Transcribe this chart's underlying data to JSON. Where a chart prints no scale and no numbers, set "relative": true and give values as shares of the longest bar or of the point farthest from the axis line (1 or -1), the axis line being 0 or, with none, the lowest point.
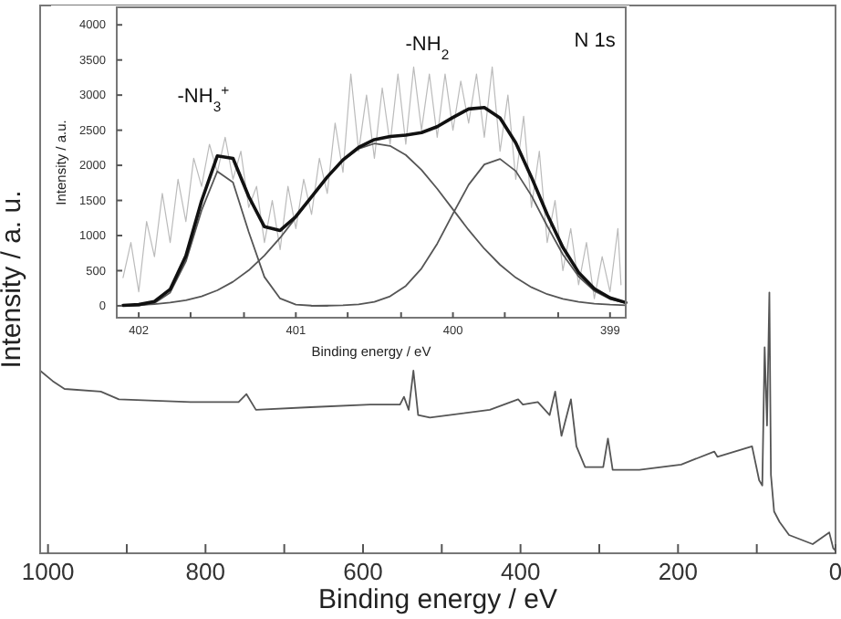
{
  "chart_data": [
    {
      "type": "line",
      "relative": true,
      "xlabel": "Binding energy / eV",
      "ylabel": "Intensity / a. u.",
      "xlim": [
        1010,
        0
      ],
      "xticks": [
        1000,
        {
          "value": 900,
          "label": null
        },
        800,
        {
          "value": 700,
          "label": null
        },
        600,
        {
          "value": 500,
          "label": null
        },
        400,
        {
          "value": 300,
          "label": null
        },
        200,
        {
          "value": 100,
          "label": null
        },
        0
      ],
      "tick_labels": "x",
      "grid": false,
      "series": [
        {
          "color": "#555555",
          "x": [
            1010,
            994,
            979,
            933,
            910,
            819,
            758,
            748,
            736,
            667,
            591,
            553,
            548,
            542,
            536,
            530,
            515,
            439,
            403,
            397,
            378,
            363,
            356,
            348,
            336,
            329,
            318,
            295,
            289,
            283,
            249,
            196,
            154,
            150,
            106,
            97,
            93,
            90,
            87,
            84,
            82,
            78,
            71,
            59,
            29,
            8,
            3,
            0
          ],
          "values": [
            0.7,
            0.66,
            0.63,
            0.62,
            0.59,
            0.58,
            0.58,
            0.61,
            0.55,
            0.56,
            0.57,
            0.57,
            0.6,
            0.55,
            0.7,
            0.53,
            0.52,
            0.55,
            0.59,
            0.57,
            0.58,
            0.53,
            0.62,
            0.45,
            0.59,
            0.41,
            0.33,
            0.33,
            0.44,
            0.32,
            0.32,
            0.34,
            0.39,
            0.37,
            0.41,
            0.28,
            0.26,
            0.79,
            0.49,
            1.0,
            0.3,
            0.16,
            0.12,
            0.07,
            0.035,
            0.08,
            0.02,
            0.01
          ]
        }
      ]
    },
    {
      "type": "line",
      "xlabel": "Binding energy / eV",
      "ylabel": "Intensity / a.u.",
      "xlim": [
        402.14,
        398.9
      ],
      "ylim": [
        -170,
        4250
      ],
      "xticks": [
        402,
        {
          "value": 401.67,
          "label": null
        },
        {
          "value": 401.33,
          "label": null
        },
        401,
        {
          "value": 400.67,
          "label": null
        },
        {
          "value": 400.33,
          "label": null
        },
        400,
        {
          "value": 399.67,
          "label": null
        },
        {
          "value": 399.33,
          "label": null
        },
        399
      ],
      "yticks": [
        0,
        500,
        1000,
        1500,
        2000,
        2500,
        3000,
        3500,
        4000
      ],
      "grid": false,
      "annotations": [
        "N 1s",
        "-NH$_{3}$$^{+}$",
        "-NH$_{2}$"
      ],
      "series": [
        {
          "color": "#bbbbbb",
          "x": [
            402.1,
            402.05,
            402.0,
            401.95,
            401.9,
            401.85,
            401.8,
            401.75,
            401.7,
            401.65,
            401.6,
            401.55,
            401.5,
            401.45,
            401.4,
            401.35,
            401.3,
            401.25,
            401.2,
            401.15,
            401.1,
            401.05,
            401.0,
            400.95,
            400.9,
            400.85,
            400.8,
            400.75,
            400.7,
            400.65,
            400.6,
            400.55,
            400.5,
            400.45,
            400.4,
            400.35,
            400.3,
            400.25,
            400.2,
            400.15,
            400.1,
            400.05,
            400.0,
            399.95,
            399.9,
            399.85,
            399.8,
            399.75,
            399.7,
            399.65,
            399.6,
            399.55,
            399.5,
            399.45,
            399.4,
            399.35,
            399.3,
            399.25,
            399.2,
            399.15,
            399.1,
            399.05,
            399.0,
            398.95,
            398.93
          ],
          "values": [
            400,
            900,
            200,
            1200,
            700,
            1600,
            900,
            1800,
            1200,
            2100,
            1700,
            2300,
            1900,
            2400,
            1800,
            2200,
            1400,
            1700,
            900,
            1500,
            800,
            1700,
            1100,
            1800,
            1300,
            2100,
            1600,
            2600,
            1900,
            3300,
            2200,
            3000,
            2100,
            3100,
            2300,
            3300,
            2300,
            3400,
            2500,
            3300,
            2400,
            3300,
            2500,
            3200,
            2600,
            3300,
            2400,
            3400,
            2200,
            3000,
            1800,
            2700,
            1400,
            2200,
            900,
            1500,
            500,
            1100,
            300,
            900,
            100,
            700,
            200,
            1100,
            300
          ]
        },
        {
          "color": "#555555",
          "x": [
            402.1,
            402.0,
            401.9,
            401.8,
            401.7,
            401.6,
            401.5,
            401.4,
            401.3,
            401.2,
            401.1,
            401.0,
            400.9,
            400.8
          ],
          "values": [
            0,
            5,
            38,
            189,
            630,
            1359,
            1913,
            1756,
            1051,
            410,
            104,
            17,
            2,
            0
          ]
        },
        {
          "color": "#555555",
          "x": [
            402.1,
            402.0,
            401.9,
            401.8,
            401.7,
            401.6,
            401.5,
            401.4,
            401.3,
            401.2,
            401.1,
            401.0,
            400.9,
            400.8,
            400.7,
            400.6,
            400.5,
            400.4,
            400.3,
            400.2,
            400.1,
            400.0,
            399.9,
            399.8,
            399.7,
            399.6,
            399.5,
            399.4,
            399.3,
            399.2,
            399.1,
            399.0,
            398.9
          ],
          "values": [
            6,
            12,
            24,
            45,
            80,
            135,
            220,
            342,
            505,
            716,
            968,
            1253,
            1550,
            1832,
            2070,
            2236,
            2310,
            2277,
            2147,
            1935,
            1666,
            1372,
            1079,
            812,
            584,
            401,
            263,
            165,
            99,
            57,
            31,
            16,
            8
          ]
        },
        {
          "color": "#555555",
          "x": [
            400.9,
            400.8,
            400.7,
            400.6,
            400.5,
            400.4,
            400.3,
            400.2,
            400.1,
            400.0,
            399.9,
            399.8,
            399.7,
            399.6,
            399.5,
            399.4,
            399.3,
            399.2,
            399.1,
            399.0,
            398.9
          ],
          "values": [
            0,
            2,
            7,
            21,
            56,
            134,
            283,
            531,
            884,
            1310,
            1723,
            2012,
            2090,
            1918,
            1567,
            1137,
            731,
            418,
            211,
            96,
            38
          ]
        },
        {
          "color": "#111111",
          "x": [
            402.1,
            402.0,
            401.9,
            401.8,
            401.7,
            401.6,
            401.5,
            401.4,
            401.3,
            401.2,
            401.1,
            401.0,
            400.9,
            400.8,
            400.7,
            400.6,
            400.5,
            400.4,
            400.3,
            400.2,
            400.1,
            400.0,
            399.9,
            399.8,
            399.7,
            399.6,
            399.5,
            399.4,
            399.3,
            399.2,
            399.1,
            399.0,
            398.9
          ],
          "values": [
            6,
            17,
            62,
            234,
            710,
            1494,
            2133,
            2098,
            1556,
            1126,
            1072,
            1270,
            1552,
            1834,
            2077,
            2257,
            2366,
            2411,
            2430,
            2466,
            2550,
            2682,
            2802,
            2824,
            2674,
            2319,
            1830,
            1302,
            830,
            475,
            242,
            112,
            46
          ]
        }
      ]
    }
  ]
}
